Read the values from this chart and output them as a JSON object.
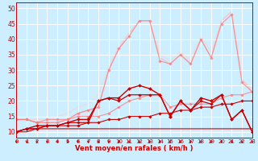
{
  "background_color": "#cceeff",
  "grid_color": "#ffffff",
  "xlabel": "Vent moyen/en rafales ( km/h )",
  "xlim": [
    0,
    23
  ],
  "ylim": [
    8,
    52
  ],
  "yticks": [
    10,
    15,
    20,
    25,
    30,
    35,
    40,
    45,
    50
  ],
  "xticks": [
    0,
    1,
    2,
    3,
    4,
    5,
    6,
    7,
    8,
    9,
    10,
    11,
    12,
    13,
    14,
    15,
    16,
    17,
    18,
    19,
    20,
    21,
    22,
    23
  ],
  "x": [
    0,
    1,
    2,
    3,
    4,
    5,
    6,
    7,
    8,
    9,
    10,
    11,
    12,
    13,
    14,
    15,
    16,
    17,
    18,
    19,
    20,
    21,
    22,
    23
  ],
  "lines": [
    {
      "y": [
        10,
        10,
        11,
        11,
        11,
        11,
        11,
        11,
        11,
        11,
        11,
        11,
        11,
        11,
        11,
        11,
        11,
        11,
        11,
        11,
        11,
        11,
        11,
        11
      ],
      "color": "#cc0000",
      "lw": 0.8,
      "marker": null,
      "ms": 0,
      "alpha": 1.0,
      "zorder": 3
    },
    {
      "y": [
        10,
        11,
        11,
        12,
        12,
        12,
        12,
        13,
        13,
        14,
        14,
        15,
        15,
        15,
        16,
        16,
        17,
        17,
        18,
        18,
        19,
        19,
        20,
        20
      ],
      "color": "#cc0000",
      "lw": 0.8,
      "marker": "D",
      "ms": 1.8,
      "alpha": 1.0,
      "zorder": 3
    },
    {
      "y": [
        10,
        11,
        11,
        12,
        12,
        13,
        13,
        13,
        20,
        21,
        20,
        22,
        22,
        22,
        22,
        15,
        20,
        17,
        20,
        19,
        22,
        14,
        17,
        10
      ],
      "color": "#cc0000",
      "lw": 0.9,
      "marker": "D",
      "ms": 1.8,
      "alpha": 1.0,
      "zorder": 4
    },
    {
      "y": [
        10,
        11,
        12,
        12,
        12,
        13,
        14,
        14,
        20,
        21,
        21,
        24,
        25,
        24,
        22,
        15,
        20,
        17,
        21,
        20,
        22,
        14,
        17,
        10
      ],
      "color": "#cc0000",
      "lw": 1.0,
      "marker": "D",
      "ms": 2.0,
      "alpha": 1.0,
      "zorder": 4
    },
    {
      "y": [
        14,
        14,
        13,
        14,
        14,
        14,
        15,
        15,
        15,
        16,
        18,
        20,
        21,
        22,
        22,
        18,
        19,
        19,
        19,
        19,
        21,
        22,
        22,
        23
      ],
      "color": "#ff7777",
      "lw": 0.8,
      "marker": "D",
      "ms": 1.8,
      "alpha": 0.75,
      "zorder": 2
    },
    {
      "y": [
        14,
        14,
        13,
        13,
        13,
        14,
        16,
        17,
        18,
        30,
        37,
        41,
        46,
        46,
        33,
        32,
        35,
        32,
        40,
        34,
        45,
        48,
        26,
        23
      ],
      "color": "#ff7777",
      "lw": 0.8,
      "marker": "D",
      "ms": 1.8,
      "alpha": 0.75,
      "zorder": 2
    },
    {
      "y": [
        14,
        14,
        13,
        13,
        13,
        14,
        16,
        17,
        18,
        30,
        37,
        42,
        46,
        46,
        34,
        32,
        35,
        32,
        40,
        34,
        46,
        49,
        27,
        23
      ],
      "color": "#ffaaaa",
      "lw": 0.9,
      "marker": null,
      "ms": 0,
      "alpha": 0.6,
      "zorder": 1
    },
    {
      "y": [
        14,
        14,
        14,
        14,
        15,
        16,
        18,
        19,
        22,
        31,
        38,
        42,
        46,
        46,
        35,
        33,
        36,
        33,
        41,
        36,
        46,
        49,
        27,
        24
      ],
      "color": "#ffcccc",
      "lw": 0.9,
      "marker": null,
      "ms": 0,
      "alpha": 0.55,
      "zorder": 1
    }
  ],
  "arrow_color": "#cc0000",
  "xlabel_color": "#cc0000",
  "xlabel_fontsize": 6,
  "tick_fontsize": 5,
  "ytick_fontsize": 5.5
}
